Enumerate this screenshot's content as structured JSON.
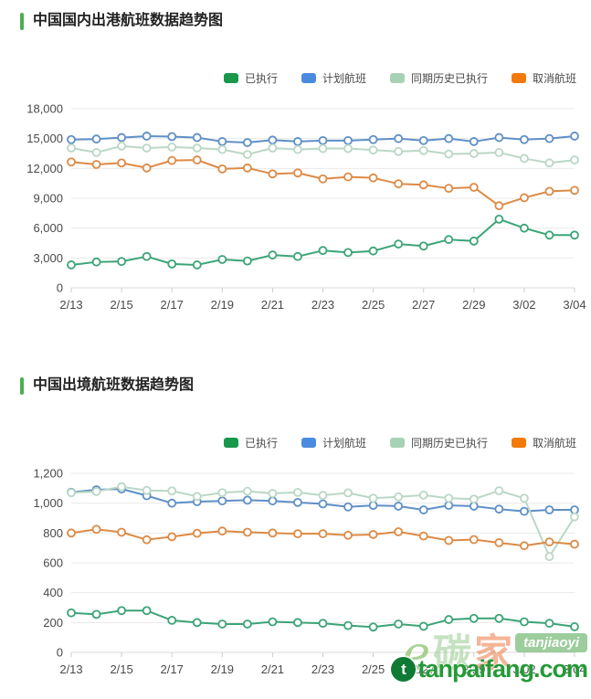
{
  "watermark": {
    "script_e": "e",
    "char_1": "碳",
    "char_2": "家",
    "badge": "tanjiaoyi",
    "site": "tanpaifang.com",
    "logo_letter": "t"
  },
  "chart_data": [
    {
      "type": "line",
      "title": "中国国内出港航班数据趋势图",
      "x": [
        "2/13",
        "2/14",
        "2/15",
        "2/16",
        "2/17",
        "2/18",
        "2/19",
        "2/20",
        "2/21",
        "2/22",
        "2/23",
        "2/24",
        "2/25",
        "2/26",
        "2/27",
        "2/28",
        "2/29",
        "3/01",
        "3/02",
        "3/03",
        "3/04"
      ],
      "x_tick_labels": [
        "2/13",
        "2/15",
        "2/17",
        "2/19",
        "2/21",
        "2/23",
        "2/25",
        "2/27",
        "2/29",
        "3/02",
        "3/04"
      ],
      "ylim": [
        0,
        18000
      ],
      "y_tick_step": 3000,
      "y_tick_labels": [
        "0",
        "3,000",
        "6,000",
        "9,000",
        "12,000",
        "15,000",
        "18,000"
      ],
      "grid": true,
      "legend_position": "top-right",
      "series": [
        {
          "name": "已执行",
          "legend_color": "#18984b",
          "line_color": "#3ba476",
          "values": [
            2300,
            2600,
            2650,
            3150,
            2400,
            2300,
            2850,
            2700,
            3300,
            3150,
            3750,
            3550,
            3700,
            4400,
            4200,
            4850,
            4700,
            6900,
            6000,
            5300,
            5300
          ]
        },
        {
          "name": "计划航班",
          "legend_color": "#4a8be0",
          "line_color": "#5e8fc6",
          "values": [
            14900,
            14950,
            15100,
            15250,
            15200,
            15100,
            14700,
            14600,
            14850,
            14700,
            14800,
            14800,
            14900,
            15000,
            14800,
            15000,
            14700,
            15100,
            14900,
            15000,
            15250
          ]
        },
        {
          "name": "同期历史已执行",
          "legend_color": "#a8d2b5",
          "line_color": "#bad7c5",
          "values": [
            14050,
            13600,
            14250,
            14050,
            14150,
            14050,
            13900,
            13400,
            14050,
            13900,
            14000,
            14000,
            13850,
            13700,
            13800,
            13450,
            13500,
            13600,
            13000,
            12550,
            12850
          ]
        },
        {
          "name": "取消航班",
          "legend_color": "#f2790a",
          "line_color": "#dd8a45",
          "values": [
            12650,
            12400,
            12550,
            12050,
            12800,
            12850,
            11950,
            12050,
            11450,
            11550,
            10950,
            11150,
            11050,
            10450,
            10350,
            10000,
            10100,
            8250,
            9050,
            9700,
            9800
          ]
        }
      ]
    },
    {
      "type": "line",
      "title": "中国出境航班数据趋势图",
      "x": [
        "2/13",
        "2/14",
        "2/15",
        "2/16",
        "2/17",
        "2/18",
        "2/19",
        "2/20",
        "2/21",
        "2/22",
        "2/23",
        "2/24",
        "2/25",
        "2/26",
        "2/27",
        "2/28",
        "2/29",
        "3/01",
        "3/02",
        "3/03",
        "3/04"
      ],
      "x_tick_labels": [
        "2/13",
        "2/15",
        "2/17",
        "2/19",
        "2/21",
        "2/23",
        "2/25",
        "2/27",
        "2/29",
        "3/02",
        "3/04"
      ],
      "ylim": [
        0,
        1200
      ],
      "y_tick_step": 200,
      "y_tick_labels": [
        "0",
        "200",
        "400",
        "600",
        "800",
        "1,000",
        "1,200"
      ],
      "grid": true,
      "legend_position": "top-right",
      "series": [
        {
          "name": "已执行",
          "legend_color": "#18984b",
          "line_color": "#3ba476",
          "values": [
            265,
            255,
            280,
            280,
            215,
            200,
            190,
            190,
            205,
            200,
            195,
            180,
            170,
            190,
            175,
            220,
            228,
            228,
            205,
            195,
            172
          ]
        },
        {
          "name": "计划航班",
          "legend_color": "#4a8be0",
          "line_color": "#5e8fc6",
          "values": [
            1073,
            1090,
            1095,
            1050,
            1000,
            1010,
            1015,
            1020,
            1015,
            1005,
            995,
            975,
            985,
            980,
            955,
            985,
            980,
            960,
            945,
            955,
            955
          ]
        },
        {
          "name": "同期历史已执行",
          "legend_color": "#a8d2b5",
          "line_color": "#bad7c5",
          "values": [
            1070,
            1078,
            1110,
            1085,
            1082,
            1045,
            1070,
            1080,
            1065,
            1072,
            1052,
            1069,
            1033,
            1042,
            1054,
            1033,
            1027,
            1083,
            1033,
            642,
            908
          ]
        },
        {
          "name": "取消航班",
          "legend_color": "#f2790a",
          "line_color": "#dd8a45",
          "values": [
            800,
            825,
            805,
            755,
            775,
            798,
            813,
            805,
            800,
            795,
            795,
            785,
            790,
            808,
            780,
            750,
            756,
            735,
            715,
            740,
            725
          ]
        }
      ]
    }
  ]
}
